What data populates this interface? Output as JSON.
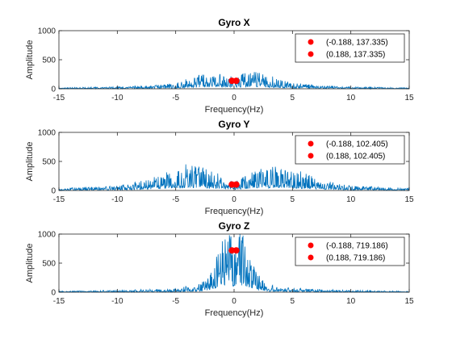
{
  "chart_data": [
    {
      "type": "line",
      "title": "Gyro X",
      "xlabel": "Frequency(Hz)",
      "ylabel": "Amplitude",
      "xlim": [
        -15,
        15
      ],
      "ylim": [
        0,
        1000
      ],
      "xticks": [
        "-15",
        "-10",
        "-5",
        "0",
        "5",
        "10",
        "15"
      ],
      "yticks": [
        "0",
        "500",
        "1000"
      ],
      "grid": false,
      "legend": "top-right",
      "line_color": "#0072BD",
      "marker_color": "#FF0000",
      "spectrum_envelope": {
        "x": [
          -15,
          -10,
          -7,
          -5,
          -3,
          -1.5,
          0,
          1.5,
          3,
          5,
          7,
          10,
          15
        ],
        "y": [
          15,
          25,
          45,
          75,
          170,
          240,
          140,
          240,
          170,
          75,
          45,
          25,
          15
        ]
      },
      "points": [
        {
          "x": -0.188,
          "y": 137.335,
          "label": "(-0.188, 137.335)"
        },
        {
          "x": 0.188,
          "y": 137.335,
          "label": "(0.188, 137.335)"
        }
      ]
    },
    {
      "type": "line",
      "title": "Gyro Y",
      "xlabel": "Frequency(Hz)",
      "ylabel": "Amplitude",
      "xlim": [
        -15,
        15
      ],
      "ylim": [
        0,
        1000
      ],
      "xticks": [
        "-15",
        "-10",
        "-5",
        "0",
        "5",
        "10",
        "15"
      ],
      "yticks": [
        "0",
        "500",
        "1000"
      ],
      "grid": false,
      "legend": "top-right",
      "line_color": "#0072BD",
      "marker_color": "#FF0000",
      "spectrum_envelope": {
        "x": [
          -15,
          -10,
          -8,
          -6,
          -4,
          -2,
          -0.5,
          0,
          0.5,
          2,
          4,
          6,
          8,
          10,
          15
        ],
        "y": [
          30,
          60,
          120,
          220,
          330,
          260,
          150,
          100,
          150,
          260,
          330,
          220,
          120,
          60,
          30
        ]
      },
      "points": [
        {
          "x": -0.188,
          "y": 102.405,
          "label": "(-0.188, 102.405)"
        },
        {
          "x": 0.188,
          "y": 102.405,
          "label": "(0.188, 102.405)"
        }
      ]
    },
    {
      "type": "line",
      "title": "Gyro Z",
      "xlabel": "Frequency(Hz)",
      "ylabel": "Amplitude",
      "xlim": [
        -15,
        15
      ],
      "ylim": [
        0,
        1000
      ],
      "xticks": [
        "-15",
        "-10",
        "-5",
        "0",
        "5",
        "10",
        "15"
      ],
      "yticks": [
        "0",
        "500",
        "1000"
      ],
      "grid": false,
      "legend": "top-right",
      "line_color": "#0072BD",
      "marker_color": "#FF0000",
      "spectrum_envelope": {
        "x": [
          -15,
          -10,
          -5,
          -3,
          -2,
          -1,
          -0.5,
          0,
          0.5,
          1,
          2,
          3,
          5,
          10,
          15
        ],
        "y": [
          12,
          25,
          50,
          100,
          280,
          650,
          820,
          700,
          820,
          650,
          280,
          100,
          50,
          25,
          12
        ]
      },
      "points": [
        {
          "x": -0.188,
          "y": 719.186,
          "label": "(-0.188, 719.186)"
        },
        {
          "x": 0.188,
          "y": 719.186,
          "label": "(0.188, 719.186)"
        }
      ]
    }
  ]
}
